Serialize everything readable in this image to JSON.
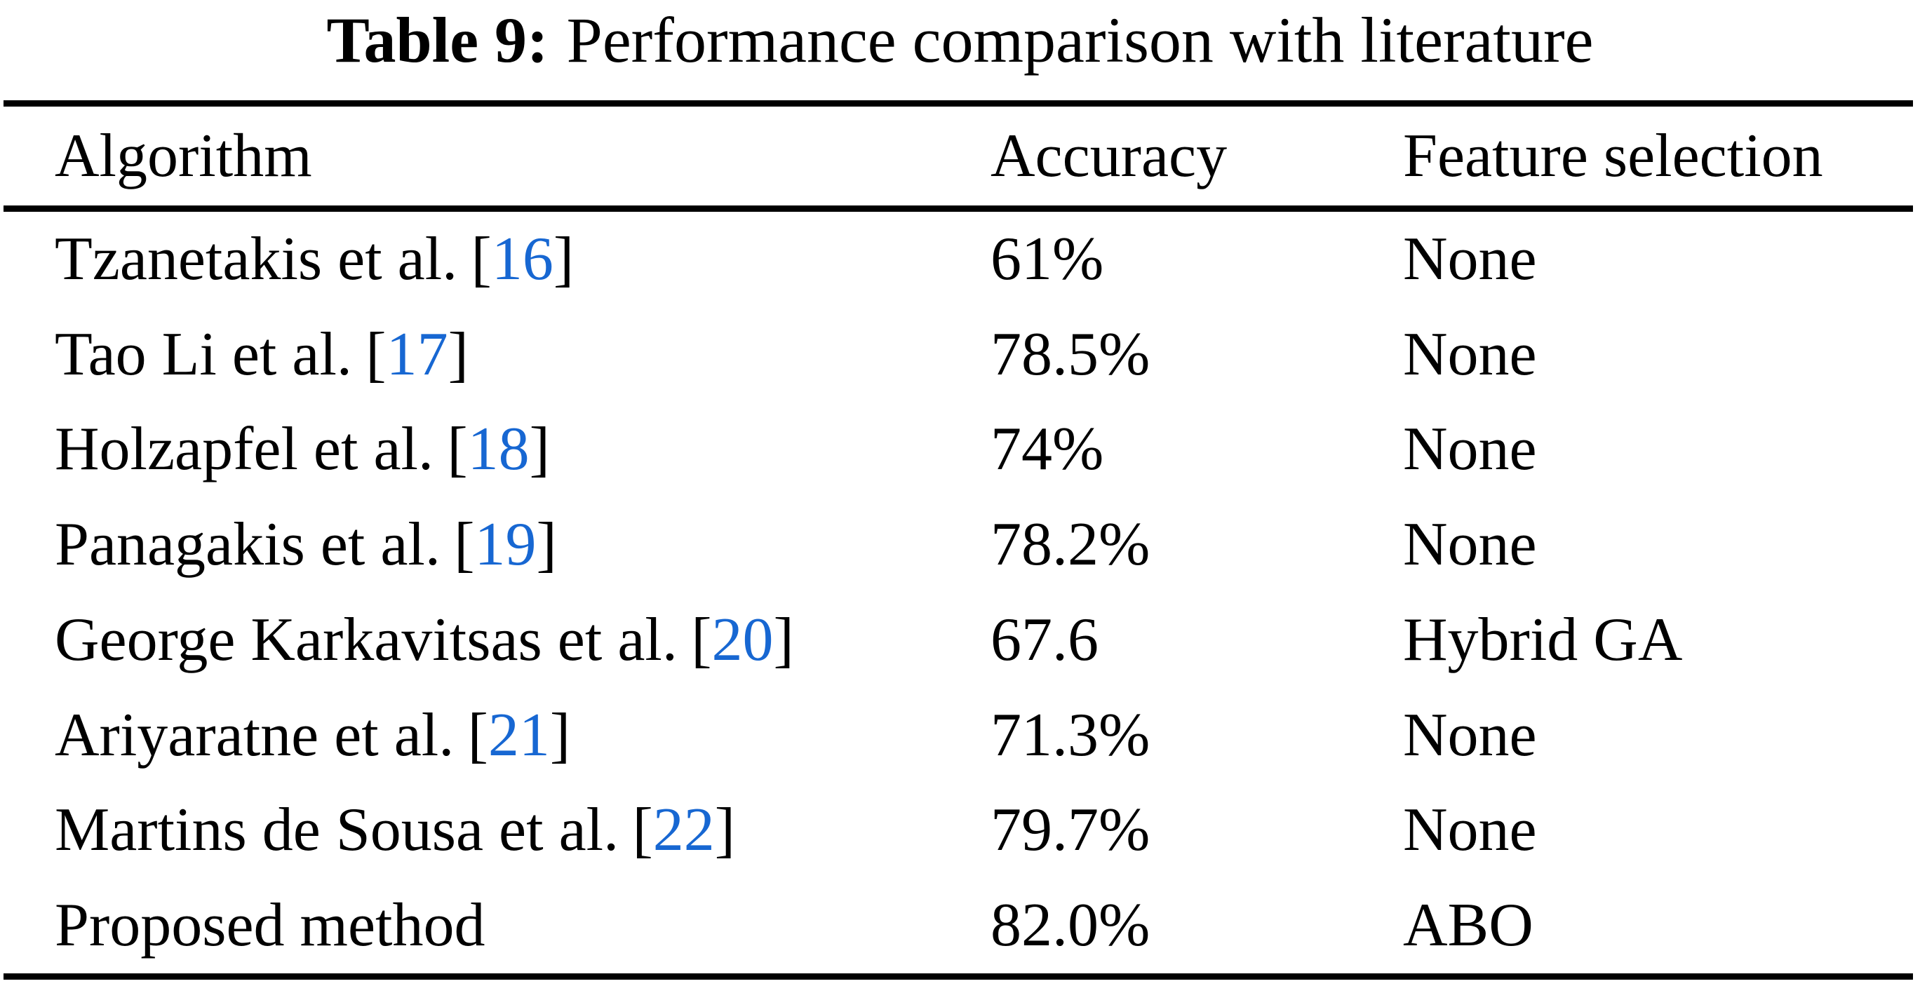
{
  "caption": {
    "label": "Table 9:",
    "text": "Performance comparison with literature"
  },
  "punct": {
    "open": "[",
    "close": "]"
  },
  "colors": {
    "citation_blue": "#1767D2",
    "text_black": "#000000",
    "background": "#FFFFFF"
  },
  "table": {
    "columns": [
      "Algorithm",
      "Accuracy",
      "Feature selection"
    ],
    "rows": [
      {
        "algorithm": "Tzanetakis et al.",
        "citation": "16",
        "accuracy": "61%",
        "feature_selection": "None"
      },
      {
        "algorithm": "Tao Li et al.",
        "citation": "17",
        "accuracy": "78.5%",
        "feature_selection": "None"
      },
      {
        "algorithm": "Holzapfel et al.",
        "citation": "18",
        "accuracy": "74%",
        "feature_selection": "None"
      },
      {
        "algorithm": "Panagakis et al.",
        "citation": "19",
        "accuracy": "78.2%",
        "feature_selection": "None"
      },
      {
        "algorithm": "George Karkavitsas et al.",
        "citation": "20",
        "accuracy": "67.6",
        "feature_selection": "Hybrid GA"
      },
      {
        "algorithm": "Ariyaratne et al.",
        "citation": "21",
        "accuracy": "71.3%",
        "feature_selection": "None"
      },
      {
        "algorithm": "Martins de Sousa et al.",
        "citation": "22",
        "accuracy": "79.7%",
        "feature_selection": "None"
      },
      {
        "algorithm": "Proposed method",
        "citation": "",
        "accuracy": "82.0%",
        "feature_selection": "ABO"
      }
    ]
  },
  "chart_data": {
    "type": "table",
    "title": "Table 9: Performance comparison with literature",
    "columns": [
      "Algorithm",
      "Accuracy",
      "Feature selection"
    ],
    "rows": [
      [
        "Tzanetakis et al. [16]",
        "61%",
        "None"
      ],
      [
        "Tao Li et al. [17]",
        "78.5%",
        "None"
      ],
      [
        "Holzapfel et al. [18]",
        "74%",
        "None"
      ],
      [
        "Panagakis et al. [19]",
        "78.2%",
        "None"
      ],
      [
        "George Karkavitsas et al. [20]",
        "67.6",
        "Hybrid GA"
      ],
      [
        "Ariyaratne et al. [21]",
        "71.3%",
        "None"
      ],
      [
        "Martins de Sousa et al. [22]",
        "79.7%",
        "None"
      ],
      [
        "Proposed method",
        "82.0%",
        "ABO"
      ]
    ]
  }
}
